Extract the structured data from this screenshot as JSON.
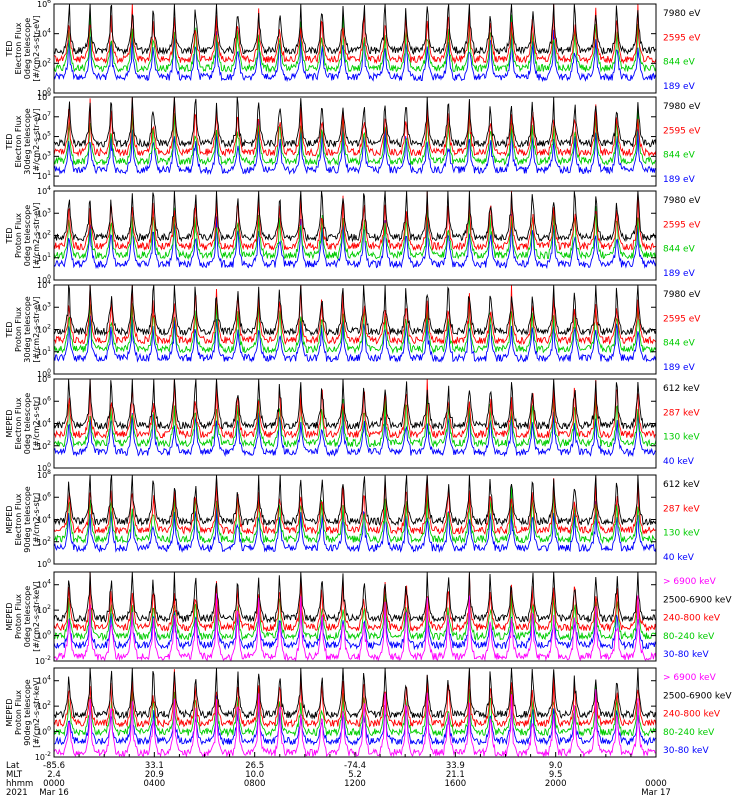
{
  "chart_data": {
    "type": "line",
    "x_axis": {
      "rows": [
        {
          "label": "Lat",
          "values": [
            "-85.6",
            "33.1",
            "26.5",
            "-74.4",
            "33.9",
            "9.0",
            ""
          ]
        },
        {
          "label": "MLT",
          "values": [
            "2.4",
            "20.9",
            "10.0",
            "5.2",
            "21.1",
            "9.5",
            ""
          ]
        },
        {
          "label": "hhmm",
          "values": [
            "0000",
            "0400",
            "0800",
            "1200",
            "1600",
            "2000",
            "0000"
          ]
        },
        {
          "label": "2021",
          "values": [
            "Mar 16",
            "",
            "",
            "",
            "",
            "",
            "Mar 17"
          ]
        }
      ],
      "range_hours": [
        0,
        24
      ]
    },
    "panels": [
      {
        "ylabel": [
          "TED",
          "Electron Flux",
          "0deg telescope",
          "[#/cm2-s-str-eV]"
        ],
        "yticks": [
          "10^6",
          "10^4",
          "10^2",
          "10^0"
        ],
        "ylog": [
          0,
          6
        ],
        "series": [
          {
            "name": "7980 eV",
            "color": "#000000"
          },
          {
            "name": "2595 eV",
            "color": "#ff0000"
          },
          {
            "name": "844 eV",
            "color": "#00cc00"
          },
          {
            "name": "189 eV",
            "color": "#0000ff"
          }
        ]
      },
      {
        "ylabel": [
          "TED",
          "Electron Flux",
          "30deg telescope",
          "[#/cm2-s-str-eV]"
        ],
        "yticks": [
          "10^9",
          "10^7",
          "10^5",
          "10^3",
          "10^1"
        ],
        "ylog": [
          0,
          9
        ],
        "series": [
          {
            "name": "7980 eV",
            "color": "#000000"
          },
          {
            "name": "2595 eV",
            "color": "#ff0000"
          },
          {
            "name": "844 eV",
            "color": "#00cc00"
          },
          {
            "name": "189 eV",
            "color": "#0000ff"
          }
        ]
      },
      {
        "ylabel": [
          "TED",
          "Proton Flux",
          "0deg telescope",
          "[#/cm2-s-str-eV]"
        ],
        "yticks": [
          "10^4",
          "10^3",
          "10^2",
          "10^1",
          "10^0"
        ],
        "ylog": [
          0,
          4
        ],
        "series": [
          {
            "name": "7980 eV",
            "color": "#000000"
          },
          {
            "name": "2595 eV",
            "color": "#ff0000"
          },
          {
            "name": "844 eV",
            "color": "#00cc00"
          },
          {
            "name": "189 eV",
            "color": "#0000ff"
          }
        ]
      },
      {
        "ylabel": [
          "TED",
          "Proton Flux",
          "30deg telescope",
          "[#/cm2-s-str-eV]"
        ],
        "yticks": [
          "10^4",
          "10^3",
          "10^2",
          "10^1",
          "10^0"
        ],
        "ylog": [
          0,
          4
        ],
        "series": [
          {
            "name": "7980 eV",
            "color": "#000000"
          },
          {
            "name": "2595 eV",
            "color": "#ff0000"
          },
          {
            "name": "844 eV",
            "color": "#00cc00"
          },
          {
            "name": "189 eV",
            "color": "#0000ff"
          }
        ]
      },
      {
        "ylabel": [
          "MEPED",
          "Electron Flux",
          "0deg telescope",
          "[#/cm2-s-str]"
        ],
        "yticks": [
          "10^8",
          "10^6",
          "10^4",
          "10^2",
          "10^0"
        ],
        "ylog": [
          0,
          8
        ],
        "series": [
          {
            "name": "612 keV",
            "color": "#000000"
          },
          {
            "name": "287 keV",
            "color": "#ff0000"
          },
          {
            "name": "130 keV",
            "color": "#00cc00"
          },
          {
            "name": "40 keV",
            "color": "#0000ff"
          }
        ]
      },
      {
        "ylabel": [
          "MEPED",
          "Electron Flux",
          "90deg telescope",
          "[#/cm2-s-str]"
        ],
        "yticks": [
          "10^8",
          "10^6",
          "10^4",
          "10^2",
          "10^0"
        ],
        "ylog": [
          0,
          8
        ],
        "series": [
          {
            "name": "612 keV",
            "color": "#000000"
          },
          {
            "name": "287 keV",
            "color": "#ff0000"
          },
          {
            "name": "130 keV",
            "color": "#00cc00"
          },
          {
            "name": "40 keV",
            "color": "#0000ff"
          }
        ]
      },
      {
        "ylabel": [
          "MEPED",
          "Proton Flux",
          "0deg telescope",
          "[#/cm2-s-str-keV]"
        ],
        "yticks": [
          "10^4",
          "10^2",
          "10^0",
          "10^-2"
        ],
        "ylog": [
          -2,
          5
        ],
        "series": [
          {
            "name": "> 6900 keV",
            "color": "#ff00ff"
          },
          {
            "name": "2500-6900 keV",
            "color": "#000000"
          },
          {
            "name": "240-800 keV",
            "color": "#ff0000"
          },
          {
            "name": "80-240 keV",
            "color": "#00cc00"
          },
          {
            "name": "30-80 keV",
            "color": "#0000ff"
          }
        ]
      },
      {
        "ylabel": [
          "MEPED",
          "Proton Flux",
          "90deg telescope",
          "[#/cm2-s-str-keV]"
        ],
        "yticks": [
          "10^4",
          "10^2",
          "10^0",
          "10^-2"
        ],
        "ylog": [
          -2,
          5
        ],
        "series": [
          {
            "name": "> 6900 keV",
            "color": "#ff00ff"
          },
          {
            "name": "2500-6900 keV",
            "color": "#000000"
          },
          {
            "name": "240-800 keV",
            "color": "#ff0000"
          },
          {
            "name": "80-240 keV",
            "color": "#00cc00"
          },
          {
            "name": "30-80 keV",
            "color": "#0000ff"
          }
        ]
      }
    ]
  }
}
